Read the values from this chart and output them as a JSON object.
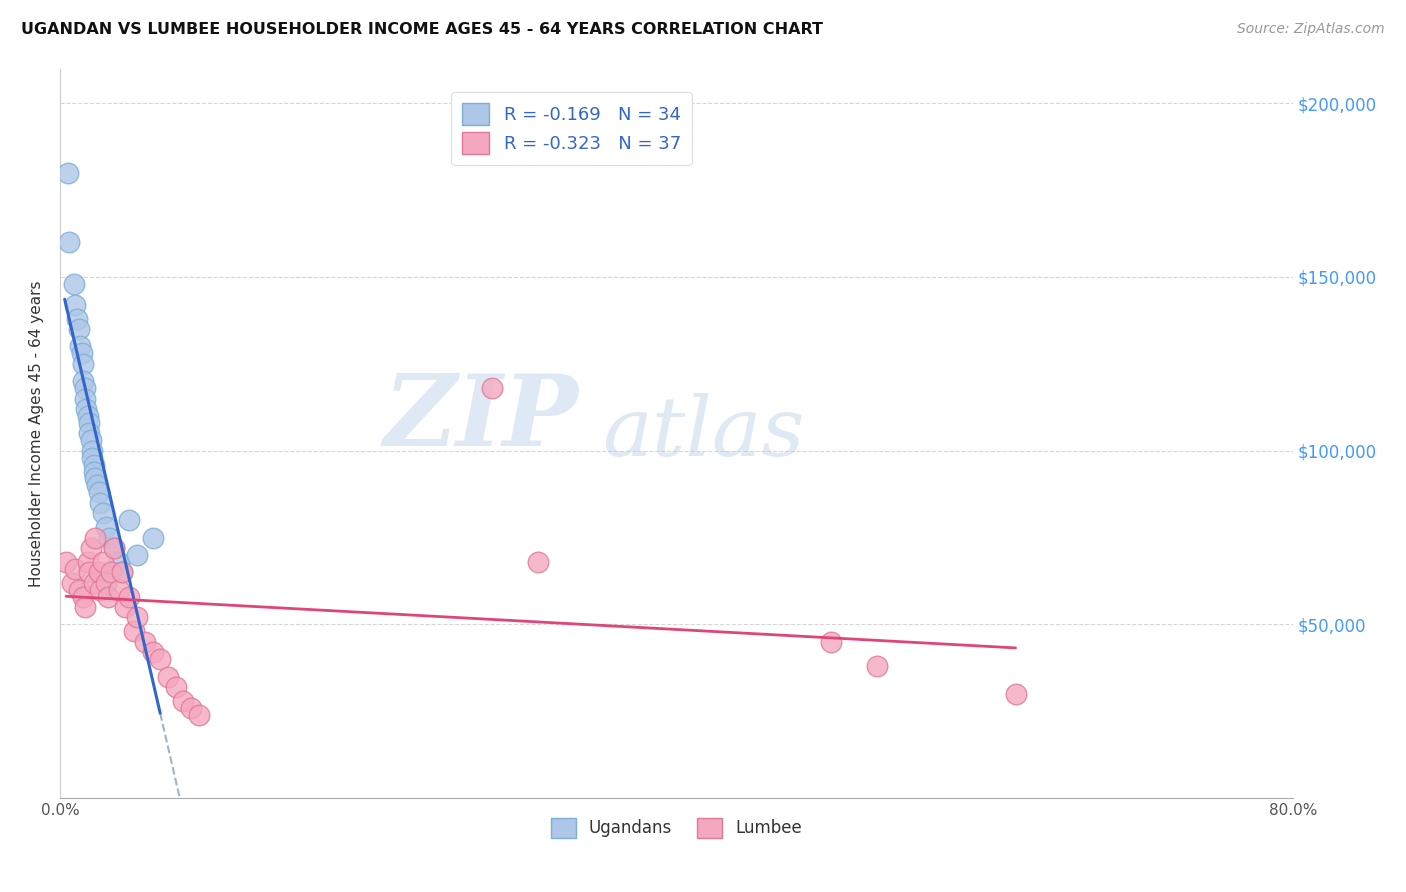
{
  "title": "UGANDAN VS LUMBEE HOUSEHOLDER INCOME AGES 45 - 64 YEARS CORRELATION CHART",
  "source": "Source: ZipAtlas.com",
  "ylabel": "Householder Income Ages 45 - 64 years",
  "x_min": 0.0,
  "x_max": 0.8,
  "y_min": 0,
  "y_max": 210000,
  "x_ticks": [
    0.0,
    0.1,
    0.2,
    0.3,
    0.4,
    0.5,
    0.6,
    0.7,
    0.8
  ],
  "x_tick_labels": [
    "0.0%",
    "",
    "",
    "",
    "",
    "",
    "",
    "",
    "80.0%"
  ],
  "y_ticks": [
    0,
    50000,
    100000,
    150000,
    200000
  ],
  "y_tick_labels_right": [
    "",
    "$50,000",
    "$100,000",
    "$150,000",
    "$200,000"
  ],
  "ugandan_R": -0.169,
  "ugandan_N": 34,
  "lumbee_R": -0.323,
  "lumbee_N": 37,
  "ugandan_color": "#aec6e8",
  "ugandan_edge": "#7bafd4",
  "lumbee_color": "#f4a8c0",
  "lumbee_edge": "#e07898",
  "trend_ugandan_color": "#3366cc",
  "trend_lumbee_color": "#e0457a",
  "trend_dashed_color": "#99aabb",
  "watermark_zip": "ZIP",
  "watermark_atlas": "atlas",
  "ugandan_x": [
    0.005,
    0.006,
    0.009,
    0.01,
    0.011,
    0.012,
    0.013,
    0.014,
    0.015,
    0.015,
    0.016,
    0.016,
    0.017,
    0.018,
    0.019,
    0.019,
    0.02,
    0.021,
    0.021,
    0.022,
    0.022,
    0.023,
    0.024,
    0.025,
    0.026,
    0.028,
    0.03,
    0.032,
    0.035,
    0.038,
    0.04,
    0.045,
    0.05,
    0.06
  ],
  "ugandan_y": [
    180000,
    160000,
    148000,
    142000,
    138000,
    135000,
    130000,
    128000,
    125000,
    120000,
    118000,
    115000,
    112000,
    110000,
    108000,
    105000,
    103000,
    100000,
    98000,
    96000,
    94000,
    92000,
    90000,
    88000,
    85000,
    82000,
    78000,
    75000,
    72000,
    68000,
    65000,
    80000,
    70000,
    75000
  ],
  "lumbee_x": [
    0.004,
    0.008,
    0.01,
    0.012,
    0.015,
    0.016,
    0.018,
    0.019,
    0.02,
    0.022,
    0.023,
    0.025,
    0.026,
    0.028,
    0.03,
    0.031,
    0.033,
    0.035,
    0.038,
    0.04,
    0.042,
    0.045,
    0.048,
    0.05,
    0.055,
    0.06,
    0.065,
    0.07,
    0.075,
    0.08,
    0.085,
    0.09,
    0.28,
    0.31,
    0.5,
    0.53,
    0.62
  ],
  "lumbee_y": [
    68000,
    62000,
    66000,
    60000,
    58000,
    55000,
    68000,
    65000,
    72000,
    62000,
    75000,
    65000,
    60000,
    68000,
    62000,
    58000,
    65000,
    72000,
    60000,
    65000,
    55000,
    58000,
    48000,
    52000,
    45000,
    42000,
    40000,
    35000,
    32000,
    28000,
    26000,
    24000,
    118000,
    68000,
    45000,
    38000,
    30000
  ]
}
